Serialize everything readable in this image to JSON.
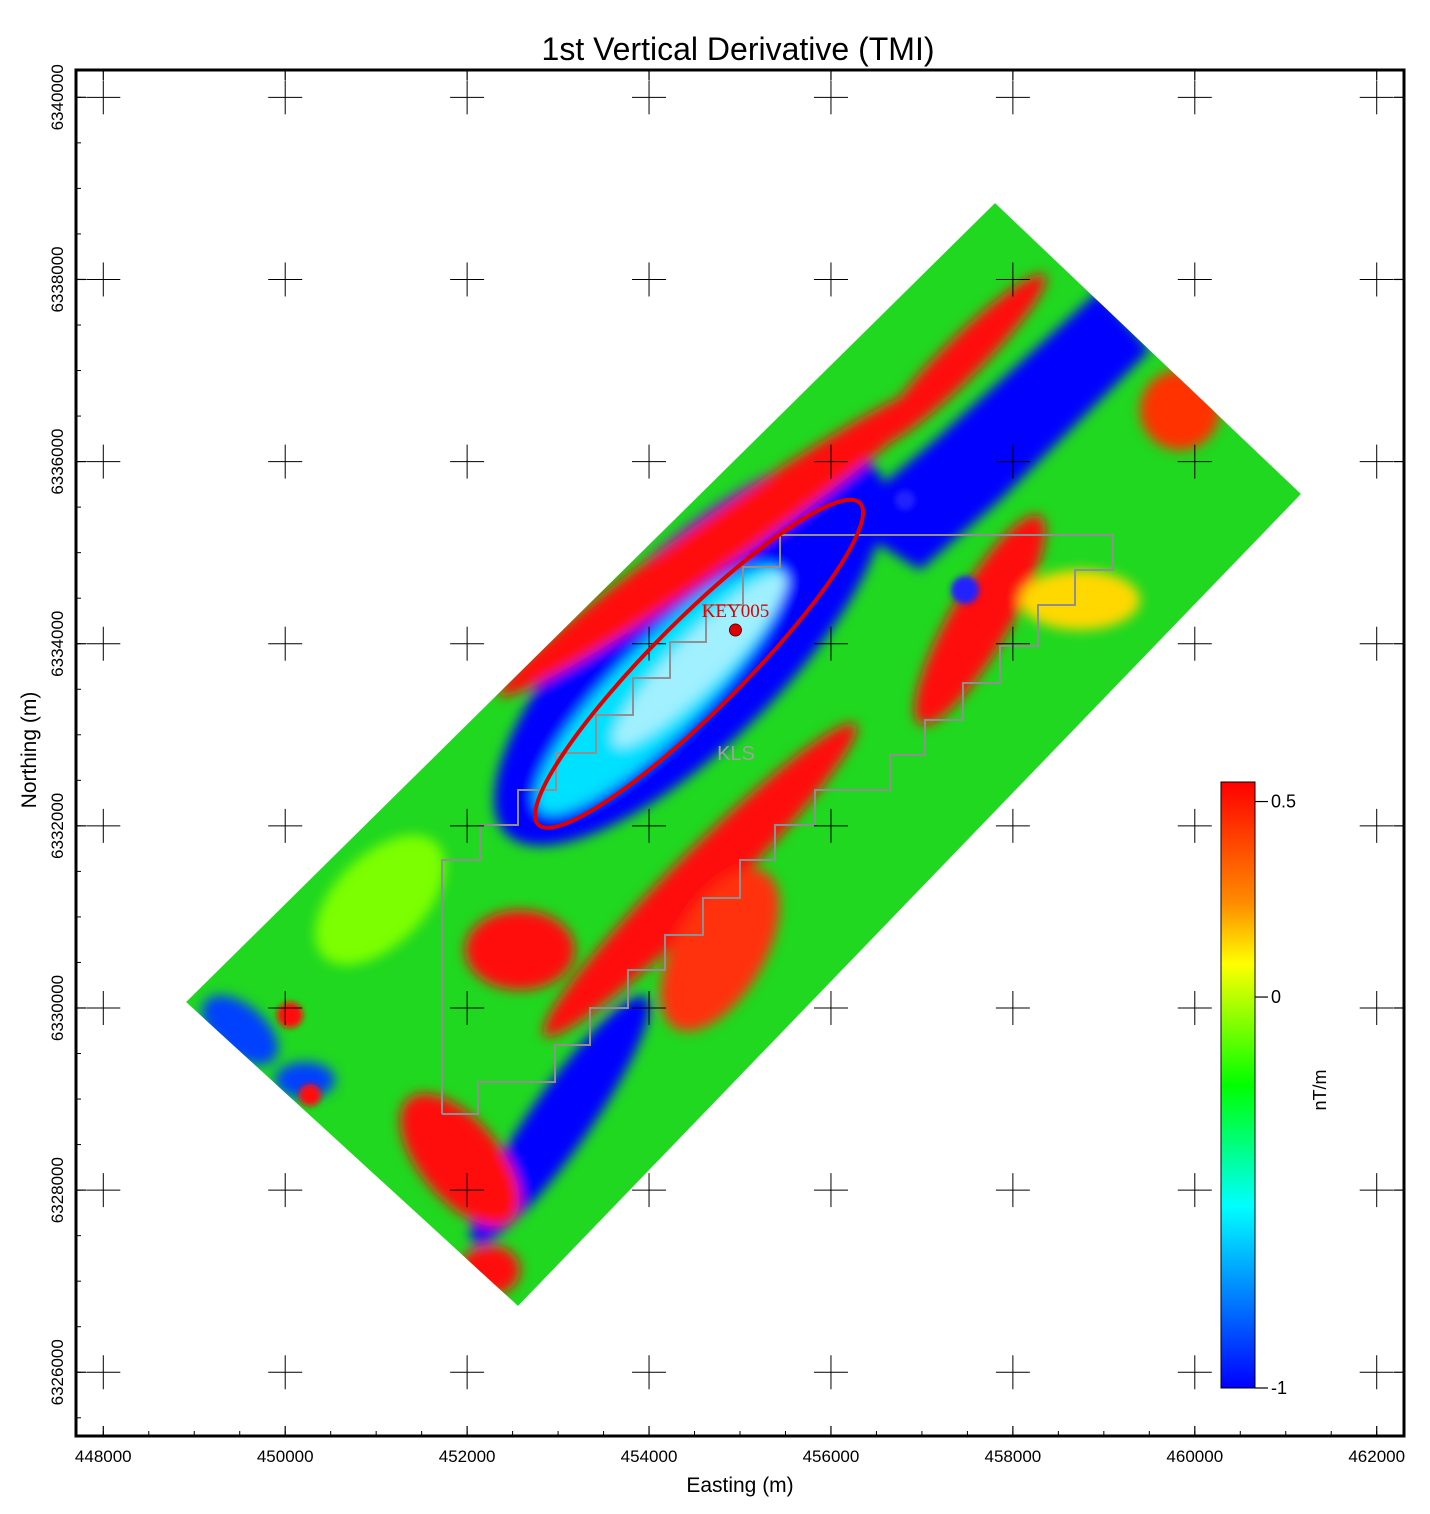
{
  "title": "1st Vertical Derivative (TMI)",
  "x_axis": {
    "label": "Easting (m)",
    "ticks": [
      "448000",
      "450000",
      "452000",
      "454000",
      "456000",
      "458000",
      "460000",
      "462000"
    ],
    "tick_values": [
      448000,
      450000,
      452000,
      454000,
      456000,
      458000,
      460000,
      462000
    ],
    "range": [
      447700,
      462300
    ]
  },
  "y_axis": {
    "label": "Northing (m)",
    "ticks": [
      "6326000",
      "6328000",
      "6330000",
      "6332000",
      "6334000",
      "6336000",
      "6338000",
      "6340000"
    ],
    "tick_values": [
      6326000,
      6328000,
      6330000,
      6332000,
      6334000,
      6336000,
      6338000,
      6340000
    ],
    "range": [
      6325300,
      6340300
    ]
  },
  "colorbar": {
    "unit": "nT/m",
    "labels": [
      "0.5",
      "0",
      "-1"
    ],
    "label_values": [
      0.5,
      0,
      -1
    ],
    "colors": [
      "#ff0000",
      "#ff8c00",
      "#ffff00",
      "#00ff00",
      "#00ffff",
      "#0000ff"
    ]
  },
  "annotations": {
    "site_label": "KEY005",
    "site_point": [
      454950,
      6334150
    ],
    "tenement_label": "KLS",
    "target_ellipse": {
      "center": [
        454550,
        6333780
      ],
      "semi_major_m": 2500,
      "semi_minor_m": 500,
      "azimuth_deg": 45
    }
  },
  "grid": {
    "crosshairs": true,
    "spacing_m": 2000
  },
  "survey_block": {
    "corners": [
      [
        448980,
        6330080
      ],
      [
        452250,
        6326450
      ],
      [
        461050,
        6335580
      ],
      [
        457700,
        6338950
      ]
    ]
  }
}
